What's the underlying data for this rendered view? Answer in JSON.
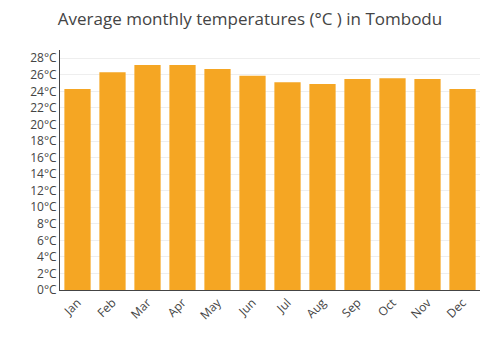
{
  "chart_data": {
    "type": "bar",
    "title": "Average monthly temperatures (°C ) in Tombodu",
    "categories": [
      "Jan",
      "Feb",
      "Mar",
      "Apr",
      "May",
      "Jun",
      "Jul",
      "Aug",
      "Sep",
      "Oct",
      "Nov",
      "Dec"
    ],
    "values": [
      24.3,
      26.3,
      27.2,
      27.2,
      26.7,
      25.9,
      25.1,
      24.9,
      25.5,
      25.6,
      25.5,
      24.3
    ],
    "color": "#F5A623",
    "ylim": [
      0,
      29
    ],
    "yticks": [
      {
        "value": 0,
        "label": "0°C"
      },
      {
        "value": 2,
        "label": "2°C"
      },
      {
        "value": 4,
        "label": "4°C"
      },
      {
        "value": 6,
        "label": "6°C"
      },
      {
        "value": 8,
        "label": "8°C"
      },
      {
        "value": 10,
        "label": "10°C"
      },
      {
        "value": 12,
        "label": "12°C"
      },
      {
        "value": 14,
        "label": "14°C"
      },
      {
        "value": 16,
        "label": "16°C"
      },
      {
        "value": 18,
        "label": "18°C"
      },
      {
        "value": 20,
        "label": "20°C"
      },
      {
        "value": 22,
        "label": "22°C"
      },
      {
        "value": 24,
        "label": "24°C"
      },
      {
        "value": 26,
        "label": "26°C"
      },
      {
        "value": 28,
        "label": "28°C"
      }
    ],
    "grid": true
  }
}
